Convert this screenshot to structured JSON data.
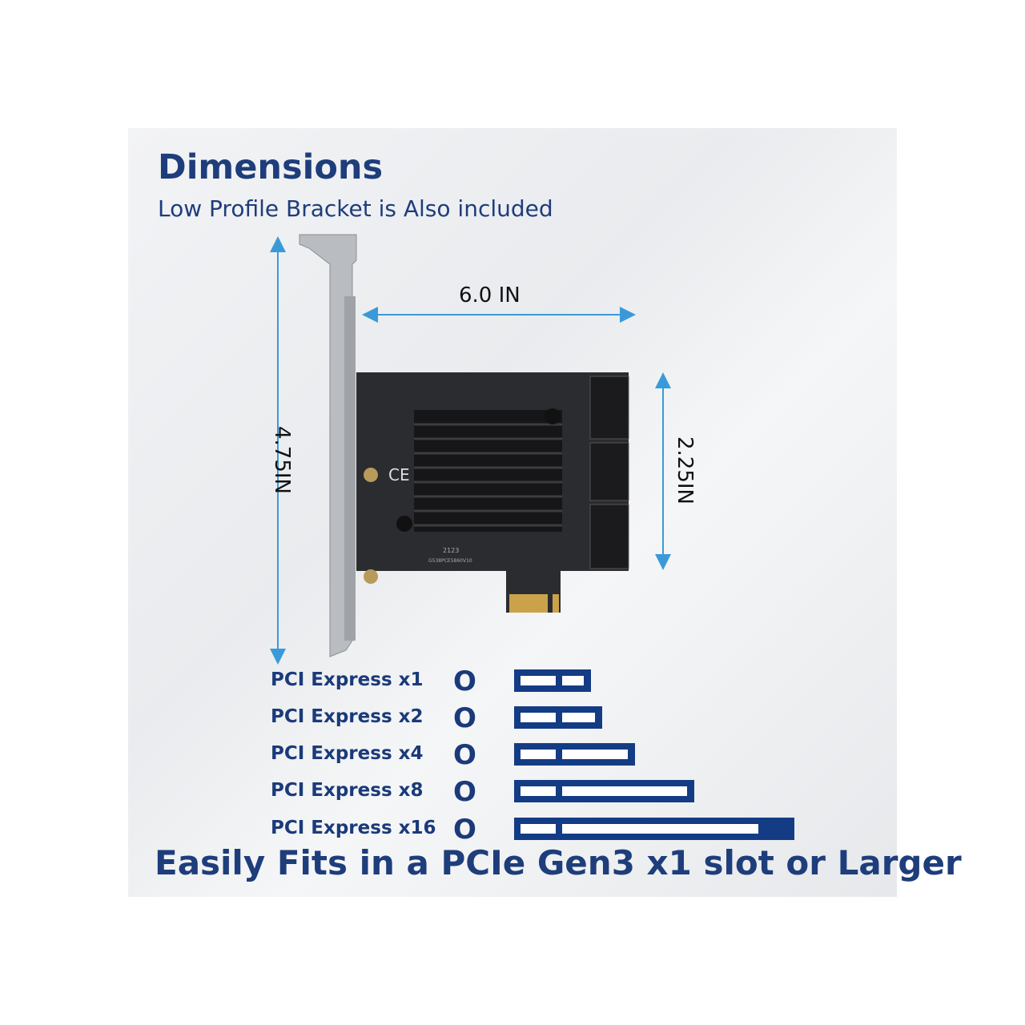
{
  "title": "Dimensions",
  "subtitle": "Low Profile Bracket is Also included",
  "dimensions": {
    "width": "6.0 IN",
    "height": "4.75IN",
    "card_height": "2.25IN"
  },
  "card_markings": {
    "date_code": "2123",
    "model": "G538PCE5860V10"
  },
  "pcie_slots": [
    {
      "label": "PCI Express x1",
      "mark": "O"
    },
    {
      "label": "PCI Express x2",
      "mark": "O"
    },
    {
      "label": "PCI Express x4",
      "mark": "O"
    },
    {
      "label": "PCI Express x8",
      "mark": "O"
    },
    {
      "label": "PCI Express x16",
      "mark": "O"
    }
  ],
  "footer": "Easily Fits in a PCIe Gen3 x1 slot or Larger",
  "colors": {
    "navy": "#1e3d7b",
    "arrow": "#3a9ad9",
    "slot": "#143c85"
  }
}
